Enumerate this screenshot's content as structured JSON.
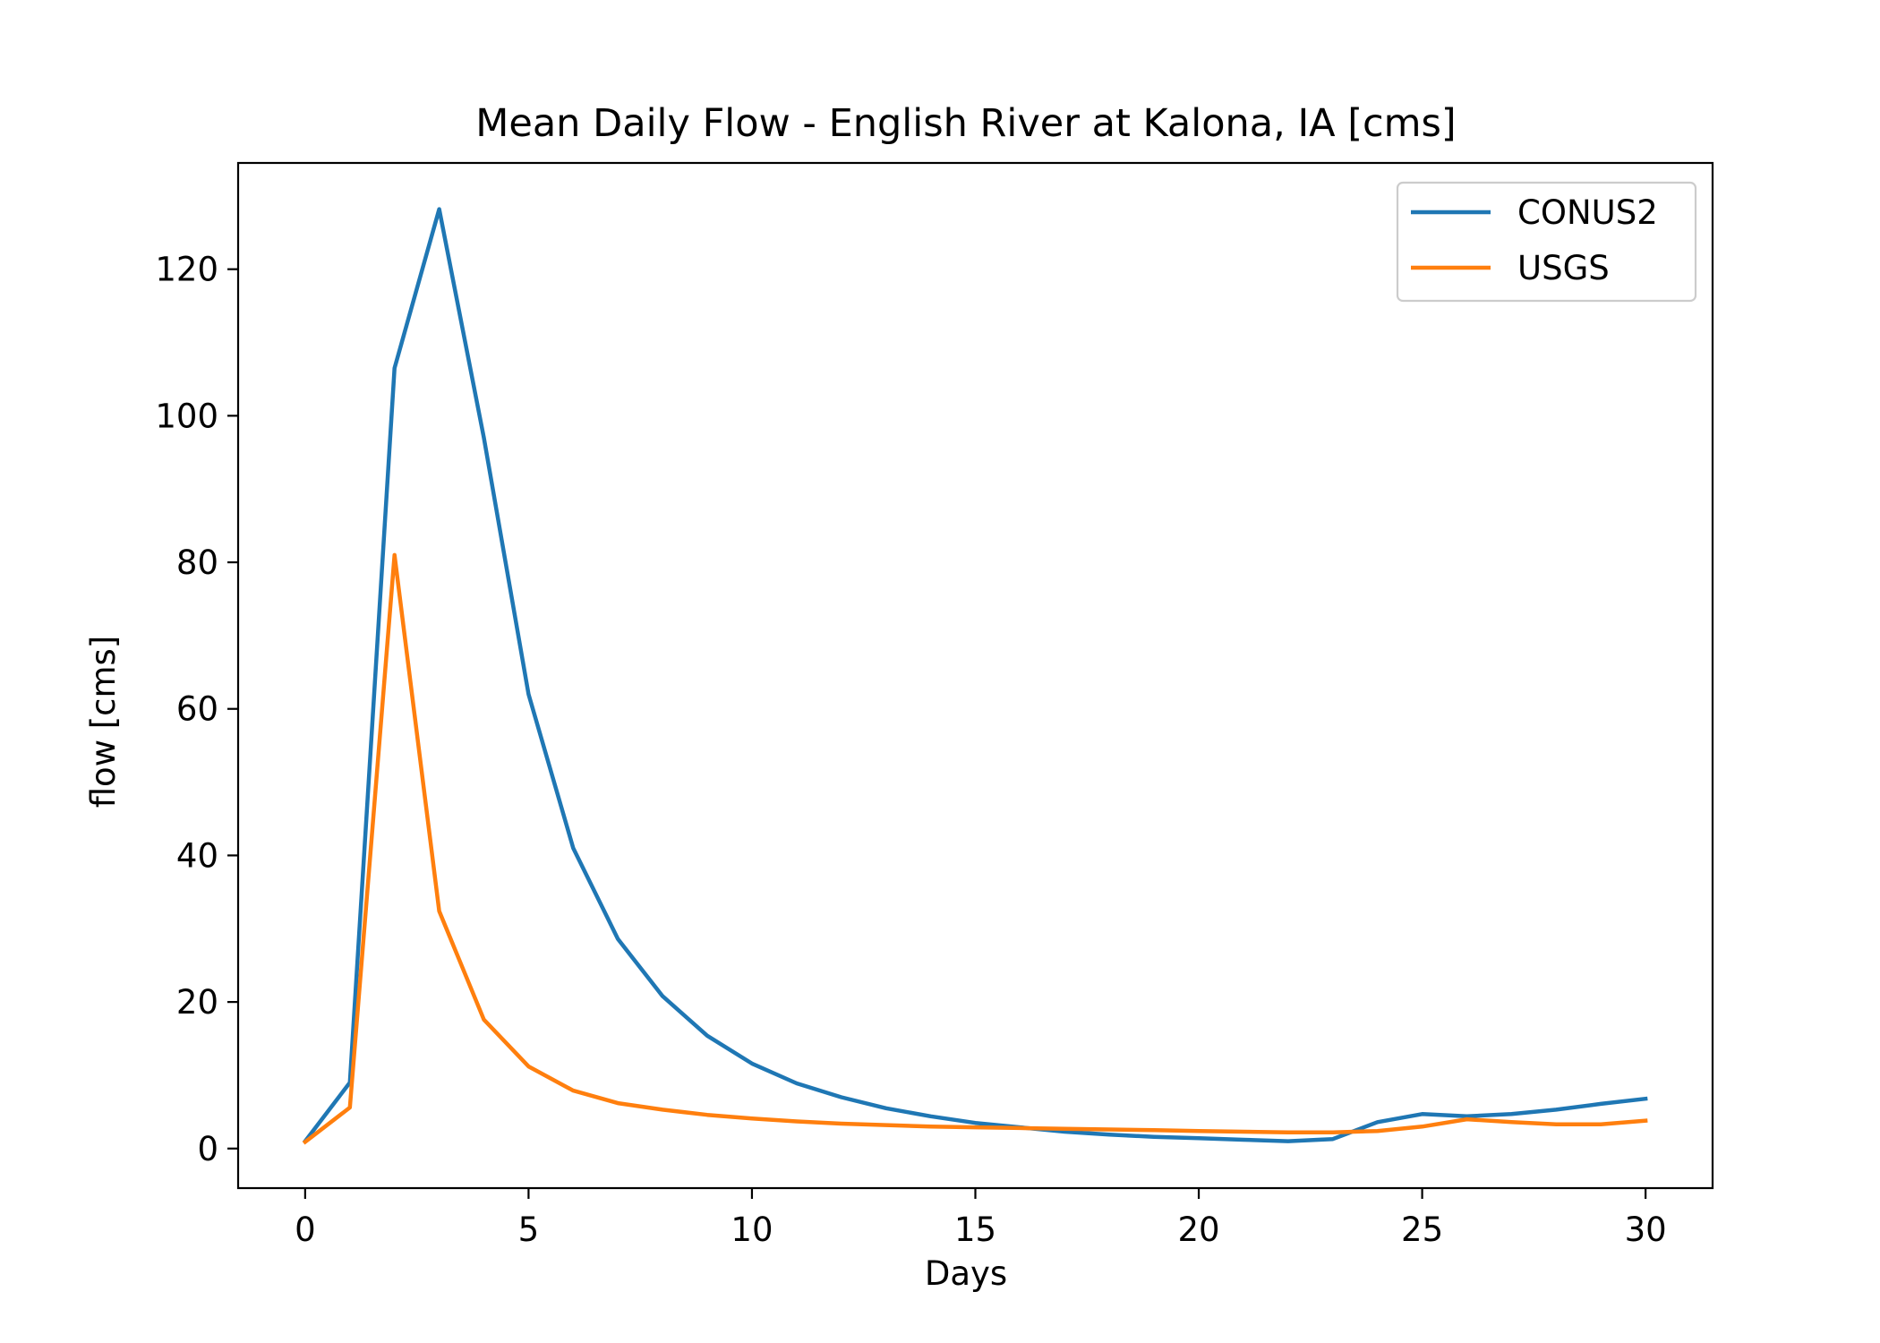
{
  "chart_data": {
    "type": "line",
    "title": "Mean Daily Flow - English River at Kalona, IA [cms]",
    "xlabel": "Days",
    "ylabel": "flow [cms]",
    "xlim": [
      -1.5,
      31.5
    ],
    "ylim": [
      -5.4,
      134.5
    ],
    "xticks": [
      0,
      5,
      10,
      15,
      20,
      25,
      30
    ],
    "yticks": [
      0,
      20,
      40,
      60,
      80,
      100,
      120
    ],
    "grid": false,
    "legend_position": "top-right",
    "x": [
      0,
      1,
      2,
      3,
      4,
      5,
      6,
      7,
      8,
      9,
      10,
      11,
      12,
      13,
      14,
      15,
      16,
      17,
      18,
      19,
      20,
      21,
      22,
      23,
      24,
      25,
      26,
      27,
      28,
      29,
      30
    ],
    "series": [
      {
        "name": "CONUS2",
        "color": "#1f77b4",
        "values": [
          1.0,
          9.0,
          106.5,
          128.2,
          97.0,
          62.0,
          41.0,
          28.6,
          20.8,
          15.4,
          11.6,
          8.9,
          7.0,
          5.5,
          4.4,
          3.5,
          2.9,
          2.3,
          1.9,
          1.6,
          1.4,
          1.2,
          1.0,
          1.3,
          3.6,
          4.7,
          4.4,
          4.7,
          5.3,
          6.1,
          6.8
        ]
      },
      {
        "name": "USGS",
        "color": "#ff7f0e",
        "values": [
          0.9,
          5.6,
          81.0,
          32.4,
          17.6,
          11.2,
          7.9,
          6.2,
          5.3,
          4.6,
          4.1,
          3.7,
          3.4,
          3.2,
          3.0,
          2.9,
          2.8,
          2.7,
          2.6,
          2.5,
          2.4,
          2.3,
          2.2,
          2.2,
          2.4,
          3.0,
          4.0,
          3.6,
          3.3,
          3.3,
          3.8
        ]
      }
    ]
  }
}
